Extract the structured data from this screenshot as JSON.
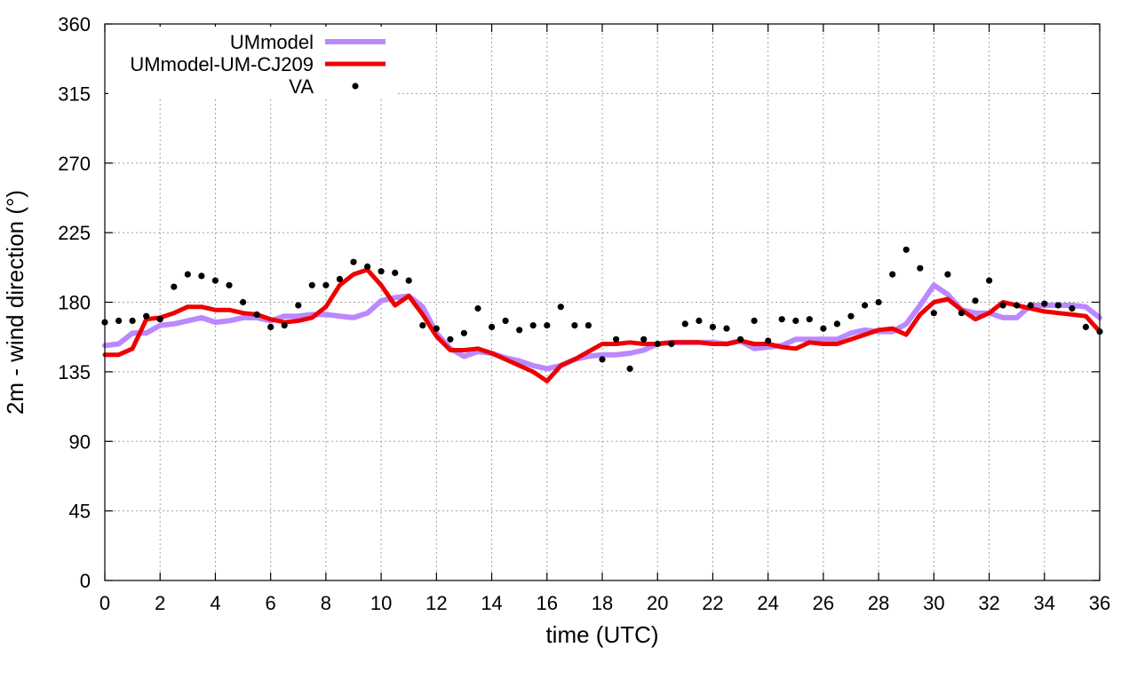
{
  "chart_data": {
    "type": "line",
    "xlabel": "time (UTC)",
    "ylabel": "2m - wind direction (°)",
    "xlim": [
      0,
      36
    ],
    "ylim": [
      0,
      360
    ],
    "xticks": [
      0,
      2,
      4,
      6,
      8,
      10,
      12,
      14,
      16,
      18,
      20,
      22,
      24,
      26,
      28,
      30,
      32,
      34,
      36
    ],
    "xtick_labels": [
      "0",
      "2",
      "4",
      "6",
      "8",
      "10",
      "12",
      "14",
      "16",
      "18",
      "20",
      "22",
      "24",
      "26",
      "28",
      "30",
      "32",
      "34",
      "36"
    ],
    "yticks": [
      0,
      45,
      90,
      135,
      180,
      225,
      270,
      315,
      360
    ],
    "ytick_labels": [
      "0",
      "45",
      "90",
      "135",
      "180",
      "225",
      "270",
      "315",
      "360"
    ],
    "grid": true,
    "legend_position": "top-left",
    "series": [
      {
        "name": "UMmodel",
        "style": "line",
        "color": "#bb88ff",
        "x": [
          0,
          0.5,
          1,
          1.5,
          2,
          2.5,
          3,
          3.5,
          4,
          4.5,
          5,
          5.5,
          6,
          6.5,
          7,
          7.5,
          8,
          8.5,
          9,
          9.5,
          10,
          10.5,
          11,
          11.5,
          12,
          12.5,
          13,
          13.5,
          14,
          14.5,
          15,
          15.5,
          16,
          16.5,
          17,
          17.5,
          18,
          18.5,
          19,
          19.5,
          20,
          20.5,
          21,
          21.5,
          22,
          22.5,
          23,
          23.5,
          24,
          24.5,
          25,
          25.5,
          26,
          26.5,
          27,
          27.5,
          28,
          28.5,
          29,
          29.5,
          30,
          30.5,
          31,
          31.5,
          32,
          32.5,
          33,
          33.5,
          34,
          34.5,
          35,
          35.5,
          36
        ],
        "y": [
          152,
          153,
          160,
          160,
          165,
          166,
          168,
          170,
          167,
          168,
          170,
          170,
          168,
          171,
          171,
          172,
          172,
          171,
          170,
          173,
          181,
          183,
          184,
          177,
          160,
          150,
          145,
          148,
          147,
          144,
          142,
          139,
          137,
          139,
          143,
          145,
          146,
          146,
          147,
          149,
          153,
          154,
          154,
          154,
          154,
          153,
          155,
          150,
          151,
          152,
          156,
          156,
          156,
          156,
          160,
          162,
          161,
          161,
          166,
          178,
          191,
          185,
          175,
          173,
          173,
          170,
          170,
          178,
          178,
          178,
          178,
          177,
          170
        ]
      },
      {
        "name": "UMmodel-UM-CJ209",
        "style": "line",
        "color": "#ee0000",
        "x": [
          0,
          0.5,
          1,
          1.5,
          2,
          2.5,
          3,
          3.5,
          4,
          4.5,
          5,
          5.5,
          6,
          6.5,
          7,
          7.5,
          8,
          8.5,
          9,
          9.5,
          10,
          10.5,
          11,
          11.5,
          12,
          12.5,
          13,
          13.5,
          14,
          14.5,
          15,
          15.5,
          16,
          16.5,
          17,
          17.5,
          18,
          18.5,
          19,
          19.5,
          20,
          20.5,
          21,
          21.5,
          22,
          22.5,
          23,
          23.5,
          24,
          24.5,
          25,
          25.5,
          26,
          26.5,
          27,
          27.5,
          28,
          28.5,
          29,
          29.5,
          30,
          30.5,
          31,
          31.5,
          32,
          32.5,
          33,
          33.5,
          34,
          34.5,
          35,
          35.5,
          36
        ],
        "y": [
          146,
          146,
          150,
          169,
          170,
          173,
          177,
          177,
          175,
          175,
          173,
          172,
          169,
          167,
          168,
          170,
          177,
          191,
          198,
          201,
          191,
          178,
          184,
          172,
          158,
          149,
          149,
          150,
          147,
          143,
          139,
          135,
          129,
          139,
          143,
          148,
          153,
          153,
          154,
          153,
          153,
          154,
          154,
          154,
          153,
          153,
          155,
          153,
          153,
          151,
          150,
          154,
          153,
          153,
          156,
          159,
          162,
          163,
          159,
          172,
          180,
          182,
          175,
          169,
          173,
          180,
          178,
          176,
          174,
          173,
          172,
          171,
          161
        ]
      },
      {
        "name": "VA",
        "style": "points",
        "color": "#000000",
        "x": [
          0,
          0.5,
          1,
          1.5,
          2,
          2.5,
          3,
          3.5,
          4,
          4.5,
          5,
          5.5,
          6,
          6.5,
          7,
          7.5,
          8,
          8.5,
          9,
          9.5,
          10,
          10.5,
          11,
          11.5,
          12,
          12.5,
          13,
          13.5,
          14,
          14.5,
          15,
          15.5,
          16,
          16.5,
          17,
          17.5,
          18,
          18.5,
          19,
          19.5,
          20,
          20.5,
          21,
          21.5,
          22,
          22.5,
          23,
          23.5,
          24,
          24.5,
          25,
          25.5,
          26,
          26.5,
          27,
          27.5,
          28,
          28.5,
          29,
          29.5,
          30,
          30.5,
          31,
          31.5,
          32,
          32.5,
          33,
          33.5,
          34,
          34.5,
          35,
          35.5,
          36
        ],
        "y": [
          167,
          168,
          168,
          171,
          169,
          190,
          198,
          197,
          194,
          191,
          180,
          172,
          164,
          165,
          178,
          191,
          191,
          195,
          206,
          203,
          200,
          199,
          194,
          165,
          163,
          156,
          160,
          176,
          164,
          168,
          162,
          165,
          165,
          177,
          165,
          165,
          143,
          156,
          137,
          156,
          153,
          153,
          166,
          168,
          164,
          163,
          156,
          168,
          155,
          169,
          168,
          169,
          163,
          166,
          171,
          178,
          180,
          198,
          214,
          202,
          173,
          198,
          173,
          181,
          194,
          178,
          178,
          178,
          179,
          178,
          176,
          164,
          161
        ]
      }
    ]
  }
}
